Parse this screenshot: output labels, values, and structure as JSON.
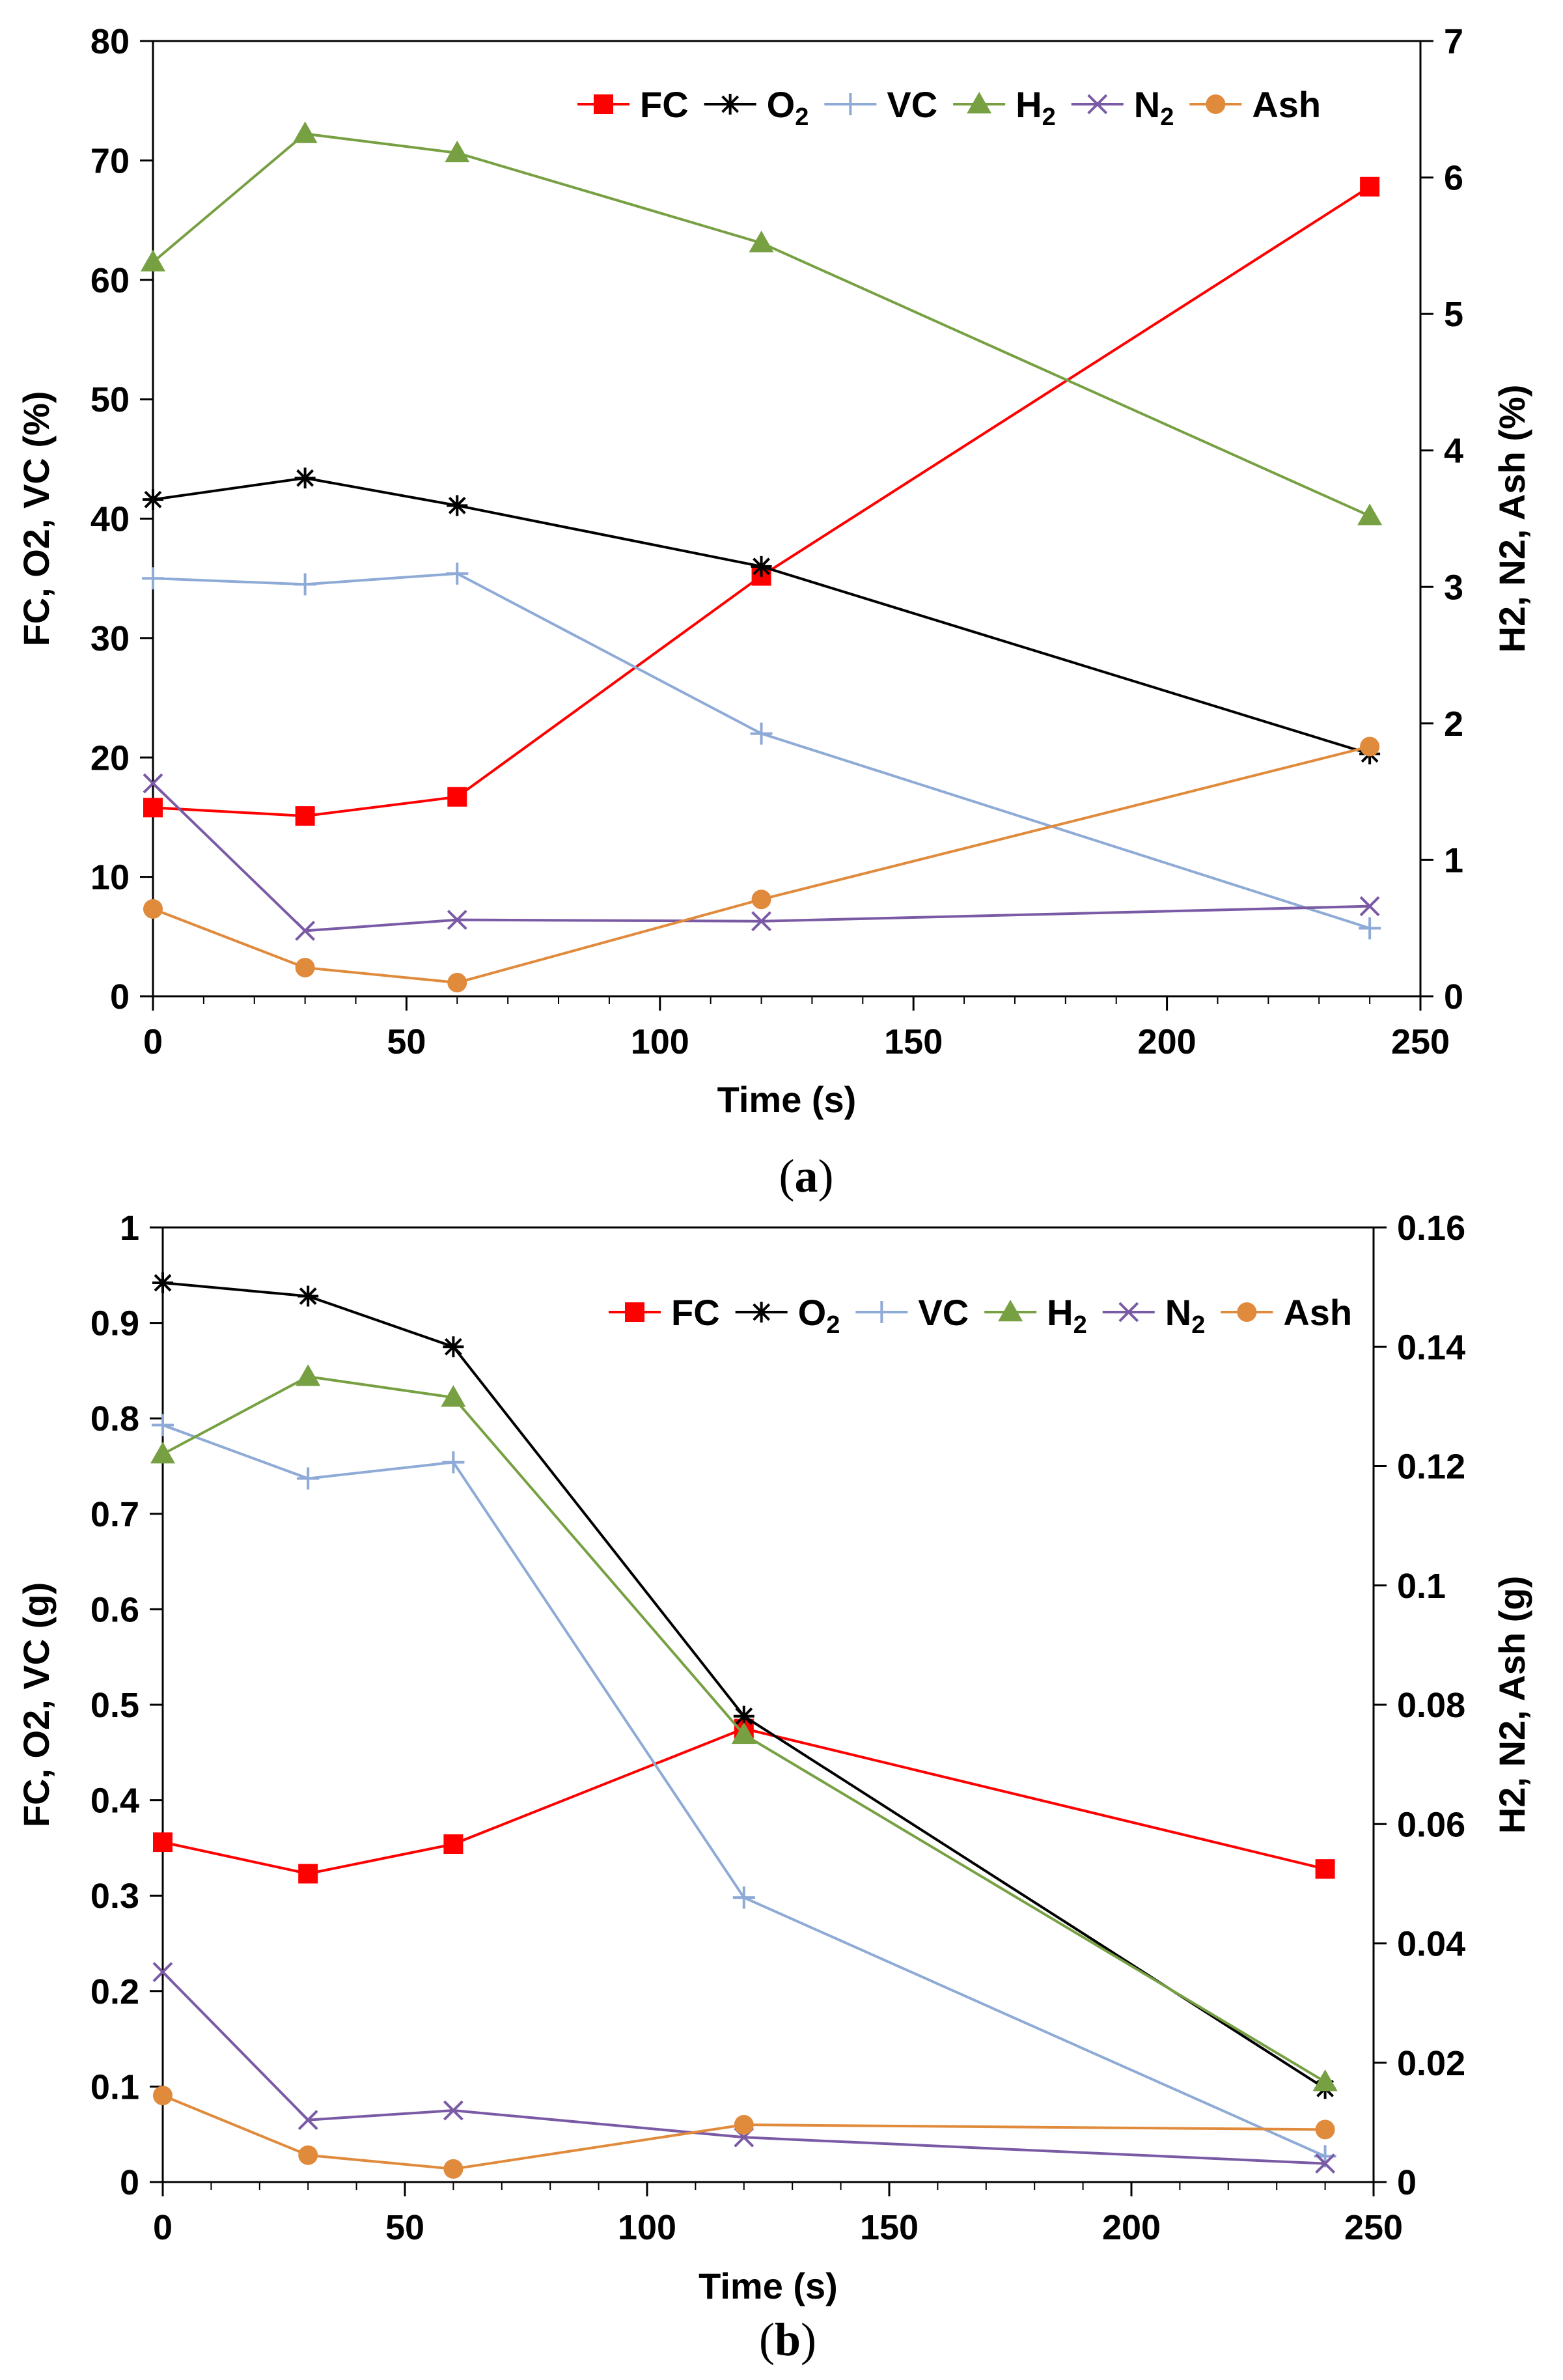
{
  "panels": [
    {
      "id": "a",
      "caption_open": "(",
      "caption_letter": "a",
      "caption_close": ")",
      "x_tick_labels": [
        "0",
        "50",
        "100",
        "150",
        "200",
        "250"
      ],
      "y_left_tick_labels": [
        "0",
        "10",
        "20",
        "30",
        "40",
        "50",
        "60",
        "70",
        "80"
      ],
      "y_right_tick_labels": [
        "0",
        "1",
        "2",
        "3",
        "4",
        "5",
        "6",
        "7"
      ]
    },
    {
      "id": "b",
      "caption_open": "(",
      "caption_letter": "b",
      "caption_close": ")",
      "x_tick_labels": [
        "0",
        "50",
        "100",
        "150",
        "200",
        "250"
      ],
      "y_left_tick_labels": [
        "0",
        "0.1",
        "0.2",
        "0.3",
        "0.4",
        "0.5",
        "0.6",
        "0.7",
        "0.8",
        "0.9",
        "1"
      ],
      "y_right_tick_labels": [
        "0",
        "0.02",
        "0.04",
        "0.06",
        "0.08",
        "0.1",
        "0.12",
        "0.14",
        "0.16"
      ]
    }
  ],
  "chart_data": [
    {
      "type": "line",
      "panel": "a",
      "xlabel": "Time (s)",
      "ylabel_left": "FC, O2, VC (%)",
      "ylabel_right": "H2, N2, Ash (%)",
      "xlim": [
        0,
        250
      ],
      "ylim_left": [
        0,
        80
      ],
      "ylim_right": [
        0,
        7
      ],
      "x": [
        0,
        30,
        60,
        120,
        240
      ],
      "legend_position": "top",
      "series": [
        {
          "name": "FC",
          "legend_main": "FC",
          "legend_sub": "",
          "axis": "left",
          "color": "#ff0000",
          "marker": "square",
          "values": [
            15.8,
            15.1,
            16.7,
            35.2,
            67.8
          ]
        },
        {
          "name": "O2",
          "legend_main": "O",
          "legend_sub": "2",
          "axis": "left",
          "color": "#000000",
          "marker": "asterisk",
          "values": [
            41.6,
            43.4,
            41.1,
            36.0,
            20.3
          ]
        },
        {
          "name": "VC",
          "legend_main": "VC",
          "legend_sub": "",
          "axis": "left",
          "color": "#8eaad6",
          "marker": "plus",
          "values": [
            35.0,
            34.5,
            35.4,
            22.0,
            5.7
          ]
        },
        {
          "name": "H2",
          "legend_main": "H",
          "legend_sub": "2",
          "axis": "right",
          "color": "#77a043",
          "marker": "triangle",
          "values": [
            5.38,
            6.32,
            6.18,
            5.52,
            3.52
          ]
        },
        {
          "name": "N2",
          "legend_main": "N",
          "legend_sub": "2",
          "axis": "right",
          "color": "#7a5aa5",
          "marker": "x",
          "values": [
            1.56,
            0.48,
            0.56,
            0.55,
            0.66
          ]
        },
        {
          "name": "Ash",
          "legend_main": "Ash",
          "legend_sub": "",
          "axis": "right",
          "color": "#e08a3c",
          "marker": "circle",
          "values": [
            0.64,
            0.21,
            0.1,
            0.71,
            1.83
          ]
        }
      ]
    },
    {
      "type": "line",
      "panel": "b",
      "xlabel": "Time (s)",
      "ylabel_left": "FC, O2, VC (g)",
      "ylabel_right": "H2, N2, Ash (g)",
      "xlim": [
        0,
        250
      ],
      "ylim_left": [
        0,
        1
      ],
      "ylim_right": [
        0,
        0.16
      ],
      "x": [
        0,
        30,
        60,
        120,
        240
      ],
      "legend_position": "top-right",
      "series": [
        {
          "name": "FC",
          "legend_main": "FC",
          "legend_sub": "",
          "axis": "left",
          "color": "#ff0000",
          "marker": "square",
          "values": [
            0.356,
            0.323,
            0.354,
            0.475,
            0.328
          ]
        },
        {
          "name": "O2",
          "legend_main": "O",
          "legend_sub": "2",
          "axis": "left",
          "color": "#000000",
          "marker": "asterisk",
          "values": [
            0.942,
            0.928,
            0.875,
            0.488,
            0.098
          ]
        },
        {
          "name": "VC",
          "legend_main": "VC",
          "legend_sub": "",
          "axis": "left",
          "color": "#8eaad6",
          "marker": "plus",
          "values": [
            0.793,
            0.737,
            0.754,
            0.298,
            0.027
          ]
        },
        {
          "name": "H2",
          "legend_main": "H",
          "legend_sub": "2",
          "axis": "right",
          "color": "#77a043",
          "marker": "triangle",
          "values": [
            0.122,
            0.135,
            0.1315,
            0.075,
            0.0168
          ]
        },
        {
          "name": "N2",
          "legend_main": "N",
          "legend_sub": "2",
          "axis": "right",
          "color": "#7a5aa5",
          "marker": "x",
          "values": [
            0.0352,
            0.0104,
            0.012,
            0.0075,
            0.0031
          ]
        },
        {
          "name": "Ash",
          "legend_main": "Ash",
          "legend_sub": "",
          "axis": "right",
          "color": "#e08a3c",
          "marker": "circle",
          "values": [
            0.0145,
            0.0045,
            0.0022,
            0.0096,
            0.0088
          ]
        }
      ]
    }
  ]
}
